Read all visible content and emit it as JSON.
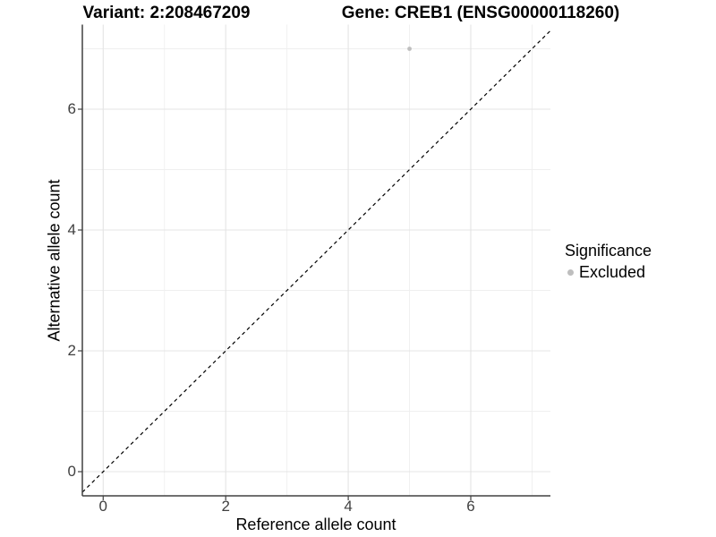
{
  "chart_data": {
    "type": "scatter",
    "titles": {
      "left": "Variant: 2:208467209",
      "right": "Gene: CREB1 (ENSG00000118260)"
    },
    "xlabel": "Reference allele count",
    "ylabel": "Alternative allele count",
    "xlim": [
      -0.34,
      7.3
    ],
    "ylim": [
      -0.4,
      7.4
    ],
    "x_major_ticks": [
      0,
      2,
      4,
      6
    ],
    "y_major_ticks": [
      0,
      2,
      4,
      6
    ],
    "x_minor_gridlines": [
      1,
      3,
      5,
      7
    ],
    "y_minor_gridlines": [
      1,
      3,
      5,
      7
    ],
    "grid": "on",
    "points": [
      {
        "x": 5,
        "y": 7,
        "series": "Excluded"
      }
    ],
    "reference_line": {
      "slope": 1,
      "intercept": 0,
      "style": "dashed",
      "color": "#000000"
    },
    "legend": {
      "title": "Significance",
      "position": "right",
      "entries": [
        {
          "label": "Excluded",
          "color": "#bebebe"
        }
      ]
    },
    "colors": {
      "background": "#ffffff",
      "grid_major": "#e4e4e4",
      "grid_minor": "#efefef",
      "axis_line": "#404040",
      "tick_mark": "#404040",
      "tick_label": "#404040",
      "title_text": "#000000",
      "point_excluded": "#bebebe"
    }
  }
}
